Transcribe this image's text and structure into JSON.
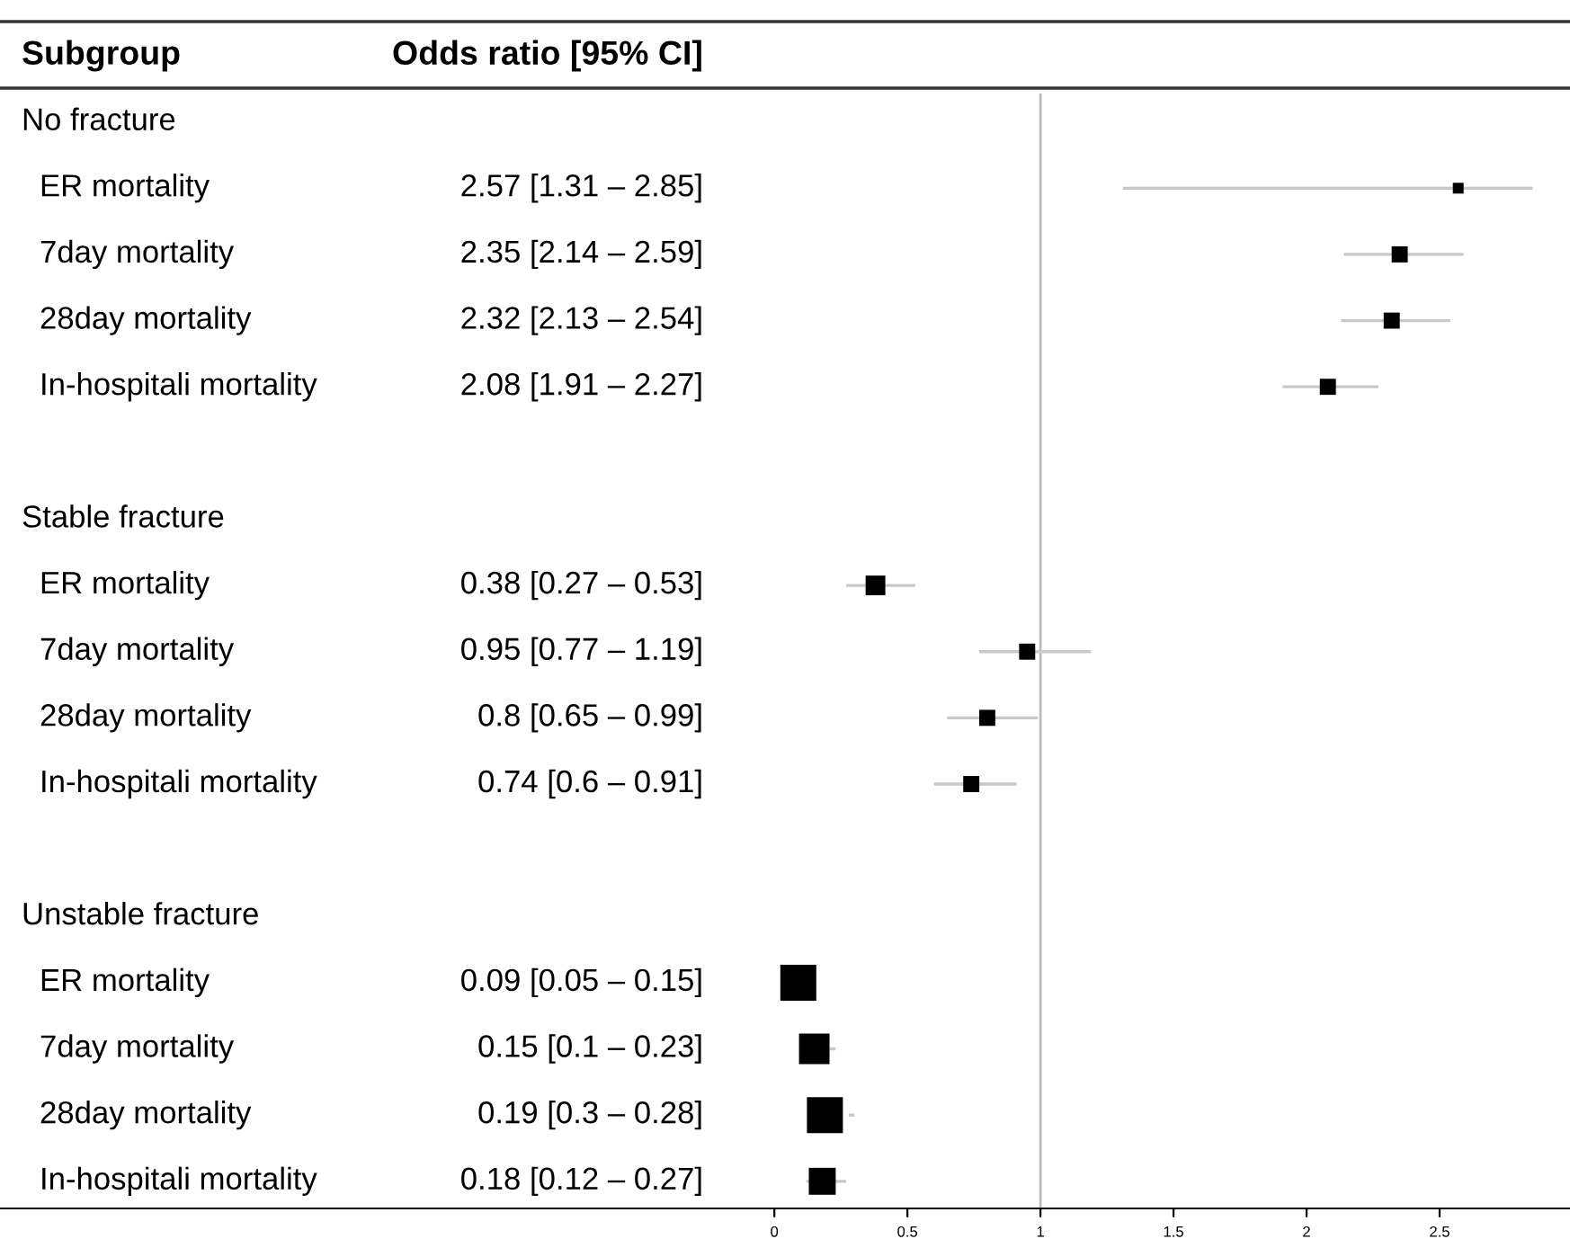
{
  "chart_data": {
    "type": "bubble",
    "orientation": "horizontal",
    "marker": "square",
    "color": "#000000",
    "categories": [
      "No fracture",
      "ER mortality",
      "7day mortality",
      "28day mortality",
      "In-hospitali mortality",
      null,
      "Stable fracture",
      "ER mortality",
      "7day mortality",
      "28day mortality",
      "In-hospitali mortality",
      null,
      "Unstable fracture",
      "ER mortality",
      "7day mortality",
      "28day mortality",
      "In-hospitali mortality"
    ],
    "values": [
      null,
      2.57,
      2.35,
      2.32,
      2.08,
      null,
      null,
      0.38,
      0.95,
      0.8,
      0.74,
      null,
      null,
      0.09,
      0.15,
      0.19,
      0.18
    ],
    "errors": [
      null,
      [
        1.31,
        2.85
      ],
      [
        2.14,
        2.59
      ],
      [
        2.13,
        2.54
      ],
      [
        1.91,
        2.27
      ],
      null,
      null,
      [
        0.27,
        0.53
      ],
      [
        0.77,
        1.19
      ],
      [
        0.65,
        0.99
      ],
      [
        0.6,
        0.91
      ],
      null,
      null,
      null,
      [
        0.1,
        0.23
      ],
      [
        0.3,
        0.28
      ],
      [
        0.12,
        0.27
      ]
    ],
    "sizes": [
      null,
      0.09,
      0.2,
      0.2,
      0.2,
      null,
      null,
      0.3,
      0.2,
      0.2,
      0.2,
      null,
      null,
      1,
      0.72,
      1,
      0.56
    ],
    "xlim": [
      -2.91,
      2.99
    ],
    "xticks": [
      0,
      0.5,
      1,
      1.5,
      2,
      2.5
    ],
    "ref_lines": [
      {
        "axis": "x",
        "value": 1,
        "color": "#bbbbbb"
      }
    ],
    "annotations": [
      "Subgroup",
      "Odds ratio [95% CI]",
      "2.57 [1.31 – 2.85]",
      "2.35 [2.14 – 2.59]",
      "2.32 [2.13 – 2.54]",
      "2.08 [1.91 – 2.27]",
      "0.38 [0.27 – 0.53]",
      "0.95 [0.77 – 1.19]",
      "0.8 [0.65 – 0.99]",
      "0.74 [0.6 – 0.91]",
      "0.09 [0.05 – 0.15]",
      "0.15 [0.1 – 0.23]",
      "0.19 [0.3 – 0.28]",
      "0.18 [0.12 – 0.27]"
    ]
  }
}
